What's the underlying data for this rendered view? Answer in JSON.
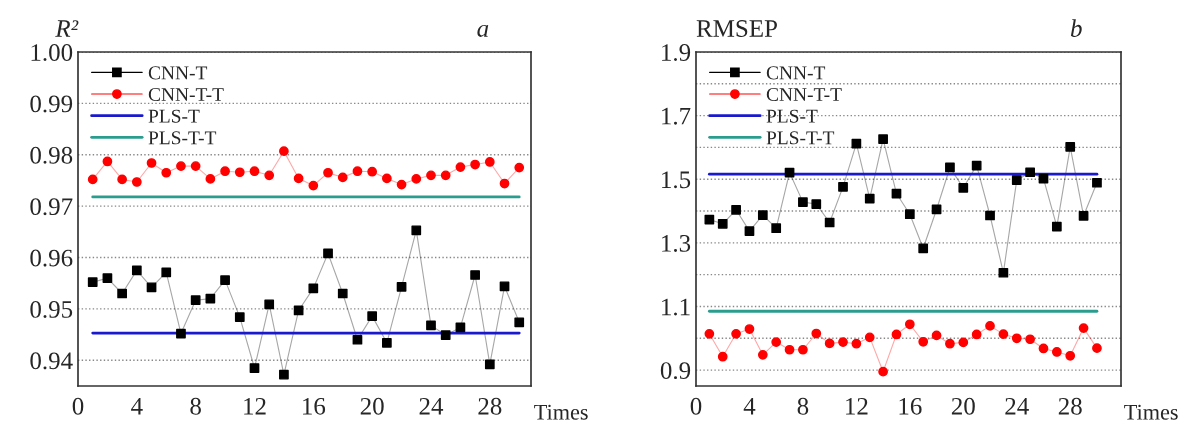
{
  "chart_data": [
    {
      "type": "line",
      "title": "a",
      "ylabel": "R²",
      "xlabel": "Times",
      "xlim": [
        0,
        30.8
      ],
      "ylim": [
        0.935,
        1.0
      ],
      "xticks": [
        0,
        4,
        8,
        12,
        16,
        20,
        24,
        28
      ],
      "yticks": [
        0.94,
        0.95,
        0.96,
        0.97,
        0.98,
        0.99,
        {
          "value": 1.0,
          "label": "1.00"
        }
      ],
      "grid": "y",
      "legend": "top left",
      "x": [
        1,
        2,
        3,
        4,
        5,
        6,
        7,
        8,
        9,
        10,
        11,
        12,
        13,
        14,
        15,
        16,
        17,
        18,
        19,
        20,
        21,
        22,
        23,
        24,
        25,
        26,
        27,
        28,
        29,
        30
      ],
      "series": [
        {
          "name": "CNN-T",
          "color": "#000000",
          "marker": "square",
          "values": [
            0.9552,
            0.956,
            0.953,
            0.9575,
            0.9542,
            0.9571,
            0.9452,
            0.9517,
            0.952,
            0.9556,
            0.9484,
            0.9385,
            0.9509,
            0.9372,
            0.9497,
            0.954,
            0.9608,
            0.953,
            0.944,
            0.9486,
            0.9434,
            0.9543,
            0.9653,
            0.9468,
            0.9449,
            0.9464,
            0.9566,
            0.9392,
            0.9544,
            0.9474
          ]
        },
        {
          "name": "CNN-T-T",
          "color": "#ff0000",
          "marker": "circle",
          "values": [
            0.9752,
            0.9787,
            0.9752,
            0.9747,
            0.9784,
            0.9765,
            0.9778,
            0.9778,
            0.9753,
            0.9768,
            0.9766,
            0.9768,
            0.976,
            0.9807,
            0.9754,
            0.974,
            0.9765,
            0.9756,
            0.9768,
            0.9767,
            0.9754,
            0.9742,
            0.9753,
            0.976,
            0.976,
            0.9776,
            0.9781,
            0.9786,
            0.9744,
            0.9775
          ]
        },
        {
          "name": "PLS-T",
          "color": "#1a1acc",
          "values": [
            0.9453,
            0.9453,
            0.9453,
            0.9453,
            0.9453,
            0.9453,
            0.9453,
            0.9453,
            0.9453,
            0.9453,
            0.9453,
            0.9453,
            0.9453,
            0.9453,
            0.9453,
            0.9453,
            0.9453,
            0.9453,
            0.9453,
            0.9453,
            0.9453,
            0.9453,
            0.9453,
            0.9453,
            0.9453,
            0.9453,
            0.9453,
            0.9453,
            0.9453,
            0.9453
          ]
        },
        {
          "name": "PLS-T-T",
          "color": "#2a9d8f",
          "values": [
            0.9718,
            0.9718,
            0.9718,
            0.9718,
            0.9718,
            0.9718,
            0.9718,
            0.9718,
            0.9718,
            0.9718,
            0.9718,
            0.9718,
            0.9718,
            0.9718,
            0.9718,
            0.9718,
            0.9718,
            0.9718,
            0.9718,
            0.9718,
            0.9718,
            0.9718,
            0.9718,
            0.9718,
            0.9718,
            0.9718,
            0.9718,
            0.9718,
            0.9718,
            0.9718
          ]
        }
      ]
    },
    {
      "type": "line",
      "title": "b",
      "ylabel": "RMSEP",
      "xlabel": "Times",
      "xlim": [
        0,
        31.8
      ],
      "ylim": [
        0.85,
        1.9
      ],
      "xticks": [
        0,
        4,
        8,
        12,
        16,
        20,
        24,
        28
      ],
      "yticks": [
        0.9,
        {
          "value": 1.0,
          "label": null
        },
        1.1,
        {
          "value": 1.2,
          "label": null
        },
        1.3,
        {
          "value": 1.4,
          "label": null
        },
        1.5,
        {
          "value": 1.6,
          "label": null
        },
        1.7,
        {
          "value": 1.8,
          "label": null
        },
        1.9
      ],
      "grid": "y",
      "legend": "top left",
      "x": [
        1,
        2,
        3,
        4,
        5,
        6,
        7,
        8,
        9,
        10,
        11,
        12,
        13,
        14,
        15,
        16,
        17,
        18,
        19,
        20,
        21,
        22,
        23,
        24,
        25,
        26,
        27,
        28,
        29,
        30
      ],
      "series": [
        {
          "name": "CNN-T",
          "color": "#000000",
          "marker": "square",
          "values": [
            1.373,
            1.36,
            1.404,
            1.337,
            1.387,
            1.346,
            1.521,
            1.428,
            1.422,
            1.364,
            1.476,
            1.612,
            1.439,
            1.626,
            1.455,
            1.39,
            1.283,
            1.405,
            1.537,
            1.473,
            1.543,
            1.386,
            1.206,
            1.497,
            1.522,
            1.502,
            1.351,
            1.602,
            1.385,
            1.489
          ]
        },
        {
          "name": "CNN-T-T",
          "color": "#ff0000",
          "marker": "circle",
          "values": [
            1.014,
            0.942,
            1.014,
            1.029,
            0.948,
            0.988,
            0.964,
            0.964,
            1.015,
            0.984,
            0.988,
            0.983,
            1.003,
            0.895,
            1.012,
            1.044,
            0.989,
            1.009,
            0.983,
            0.987,
            1.012,
            1.039,
            1.013,
            1.0,
            0.997,
            0.968,
            0.957,
            0.945,
            1.032,
            0.969
          ]
        },
        {
          "name": "PLS-T",
          "color": "#1a1acc",
          "values": [
            1.516,
            1.516,
            1.516,
            1.516,
            1.516,
            1.516,
            1.516,
            1.516,
            1.516,
            1.516,
            1.516,
            1.516,
            1.516,
            1.516,
            1.516,
            1.516,
            1.516,
            1.516,
            1.516,
            1.516,
            1.516,
            1.516,
            1.516,
            1.516,
            1.516,
            1.516,
            1.516,
            1.516,
            1.516,
            1.516
          ]
        },
        {
          "name": "PLS-T-T",
          "color": "#2a9d8f",
          "values": [
            1.085,
            1.085,
            1.085,
            1.085,
            1.085,
            1.085,
            1.085,
            1.085,
            1.085,
            1.085,
            1.085,
            1.085,
            1.085,
            1.085,
            1.085,
            1.085,
            1.085,
            1.085,
            1.085,
            1.085,
            1.085,
            1.085,
            1.085,
            1.085,
            1.085,
            1.085,
            1.085,
            1.085,
            1.085,
            1.085
          ]
        }
      ]
    }
  ]
}
